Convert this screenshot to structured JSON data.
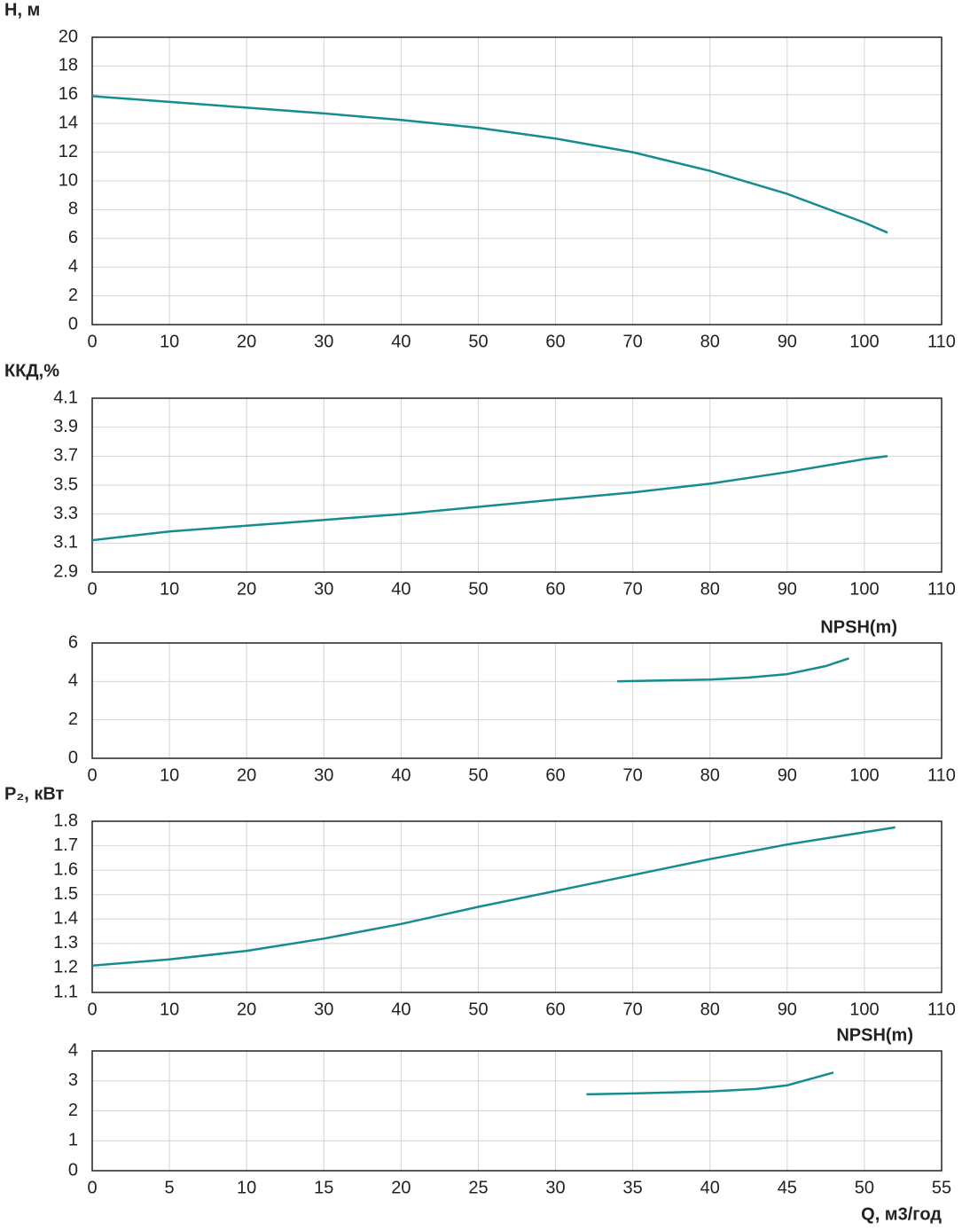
{
  "chart_data": [
    {
      "type": "line",
      "y_label": "H, м",
      "color": "#168c8f",
      "grid": true,
      "xlim": [
        0,
        110
      ],
      "xticks": [
        0,
        10,
        20,
        30,
        40,
        50,
        60,
        70,
        80,
        90,
        100,
        110
      ],
      "ylim": [
        0,
        20
      ],
      "yticks": [
        0,
        2,
        4,
        6,
        8,
        10,
        12,
        14,
        16,
        18,
        20
      ],
      "x": [
        0,
        10,
        20,
        30,
        40,
        50,
        60,
        70,
        80,
        90,
        100,
        103
      ],
      "values": [
        15.9,
        15.5,
        15.1,
        14.7,
        14.25,
        13.7,
        12.95,
        12.0,
        10.7,
        9.1,
        7.1,
        6.4
      ]
    },
    {
      "type": "line",
      "y_label": "ККД,%",
      "color": "#168c8f",
      "grid": true,
      "xlim": [
        0,
        110
      ],
      "xticks": [
        0,
        10,
        20,
        30,
        40,
        50,
        60,
        70,
        80,
        90,
        100,
        110
      ],
      "ylim": [
        2.9,
        4.1
      ],
      "yticks": [
        2.9,
        3.1,
        3.3,
        3.5,
        3.7,
        3.9,
        4.1
      ],
      "x": [
        0,
        10,
        20,
        30,
        40,
        50,
        60,
        70,
        80,
        90,
        100,
        103
      ],
      "values": [
        3.12,
        3.18,
        3.22,
        3.26,
        3.3,
        3.35,
        3.4,
        3.45,
        3.51,
        3.59,
        3.68,
        3.7
      ]
    },
    {
      "type": "line",
      "title": "NPSH(m)",
      "color": "#168c8f",
      "grid": true,
      "xlim": [
        0,
        110
      ],
      "xticks": [
        0,
        10,
        20,
        30,
        40,
        50,
        60,
        70,
        80,
        90,
        100,
        110
      ],
      "ylim": [
        0,
        6
      ],
      "yticks": [
        0,
        2,
        4,
        6
      ],
      "x": [
        68,
        70,
        80,
        85,
        90,
        95,
        98
      ],
      "values": [
        4.0,
        4.02,
        4.1,
        4.2,
        4.38,
        4.8,
        5.2
      ]
    },
    {
      "type": "line",
      "y_label": "P₂, кВт",
      "color": "#168c8f",
      "grid": true,
      "xlim": [
        0,
        110
      ],
      "xticks": [
        0,
        10,
        20,
        30,
        40,
        50,
        60,
        70,
        80,
        90,
        100,
        110
      ],
      "ylim": [
        1.1,
        1.8
      ],
      "yticks": [
        1.1,
        1.2,
        1.3,
        1.4,
        1.5,
        1.6,
        1.7,
        1.8
      ],
      "x": [
        0,
        10,
        20,
        30,
        40,
        50,
        60,
        70,
        80,
        90,
        100,
        104
      ],
      "values": [
        1.21,
        1.235,
        1.27,
        1.32,
        1.38,
        1.45,
        1.515,
        1.58,
        1.645,
        1.705,
        1.755,
        1.775
      ]
    },
    {
      "type": "line",
      "title": "NPSH(m)",
      "x_label": "Q, м3/год",
      "color": "#168c8f",
      "grid": true,
      "xlim": [
        0,
        55
      ],
      "xticks": [
        0,
        5,
        10,
        15,
        20,
        25,
        30,
        35,
        40,
        45,
        50,
        55
      ],
      "ylim": [
        0,
        4
      ],
      "yticks": [
        0,
        1,
        2,
        3,
        4
      ],
      "x": [
        32,
        35,
        40,
        43,
        45,
        48
      ],
      "values": [
        2.55,
        2.58,
        2.65,
        2.73,
        2.85,
        3.28
      ]
    }
  ]
}
